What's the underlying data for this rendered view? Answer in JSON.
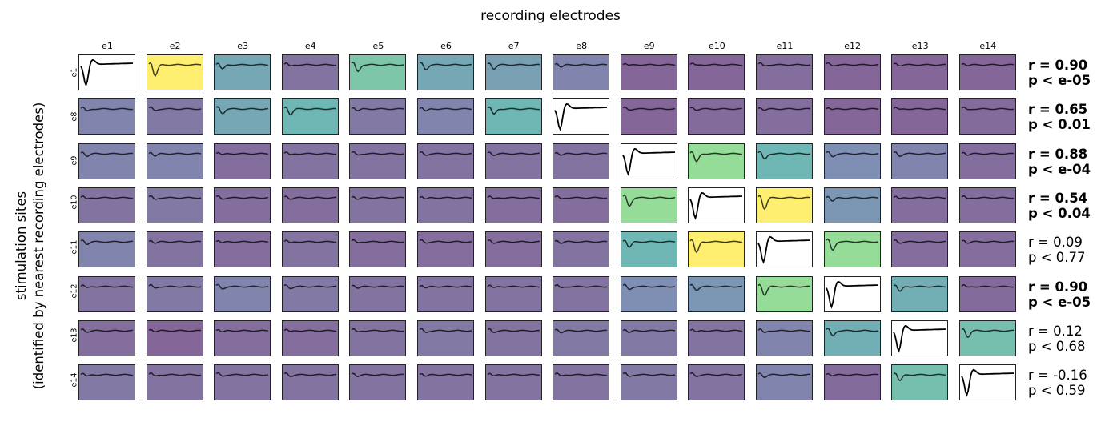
{
  "chart_data": {
    "type": "heatmap",
    "title": "recording electrodes",
    "ylabel_lines": [
      "stimulation sites",
      "(identified by nearest recording electrodes)"
    ],
    "columns": [
      "e1",
      "e2",
      "e3",
      "e4",
      "e5",
      "e6",
      "e7",
      "e8",
      "e9",
      "e10",
      "e11",
      "e12",
      "e13",
      "e14"
    ],
    "rows": [
      {
        "label": "e1",
        "stim_col": 0,
        "r": "r = 0.90",
        "p": "p < e-05",
        "significant": true,
        "intensity": [
          0,
          1.0,
          0.4,
          0.12,
          0.6,
          0.4,
          0.35,
          0.2,
          0.06,
          0.06,
          0.1,
          0.06,
          0.06,
          0.06
        ]
      },
      {
        "label": "e8",
        "stim_col": 7,
        "r": "r = 0.65",
        "p": "p < 0.01",
        "significant": true,
        "intensity": [
          0.2,
          0.15,
          0.4,
          0.5,
          0.15,
          0.2,
          0.5,
          0,
          0.06,
          0.08,
          0.1,
          0.06,
          0.06,
          0.08
        ]
      },
      {
        "label": "e9",
        "stim_col": 8,
        "r": "r = 0.88",
        "p": "p < e-04",
        "significant": true,
        "intensity": [
          0.2,
          0.2,
          0.1,
          0.12,
          0.12,
          0.12,
          0.12,
          0.12,
          0,
          0.75,
          0.5,
          0.25,
          0.2,
          0.1
        ]
      },
      {
        "label": "e10",
        "stim_col": 9,
        "r": "r = 0.54",
        "p": "p < 0.04",
        "significant": true,
        "intensity": [
          0.12,
          0.15,
          0.1,
          0.1,
          0.12,
          0.12,
          0.1,
          0.1,
          0.75,
          0,
          1.0,
          0.3,
          0.1,
          0.1
        ]
      },
      {
        "label": "e11",
        "stim_col": 10,
        "r": "r = 0.09",
        "p": "p < 0.77",
        "significant": false,
        "intensity": [
          0.2,
          0.12,
          0.1,
          0.12,
          0.1,
          0.1,
          0.1,
          0.12,
          0.5,
          1.0,
          0,
          0.75,
          0.1,
          0.1
        ]
      },
      {
        "label": "e12",
        "stim_col": 11,
        "r": "r = 0.90",
        "p": "p < e-05",
        "significant": true,
        "intensity": [
          0.12,
          0.15,
          0.2,
          0.15,
          0.12,
          0.12,
          0.12,
          0.12,
          0.25,
          0.3,
          0.75,
          0,
          0.45,
          0.08
        ]
      },
      {
        "label": "e13",
        "stim_col": 12,
        "r": "r = 0.12",
        "p": "p < 0.68",
        "significant": false,
        "intensity": [
          0.1,
          0.06,
          0.1,
          0.1,
          0.12,
          0.15,
          0.12,
          0.15,
          0.15,
          0.12,
          0.2,
          0.45,
          0,
          0.55
        ]
      },
      {
        "label": "e14",
        "stim_col": 13,
        "r": "r = -0.16",
        "p": "p < 0.59",
        "significant": false,
        "intensity": [
          0.15,
          0.12,
          0.12,
          0.12,
          0.12,
          0.12,
          0.12,
          0.12,
          0.15,
          0.12,
          0.2,
          0.08,
          0.55,
          0
        ]
      }
    ]
  }
}
